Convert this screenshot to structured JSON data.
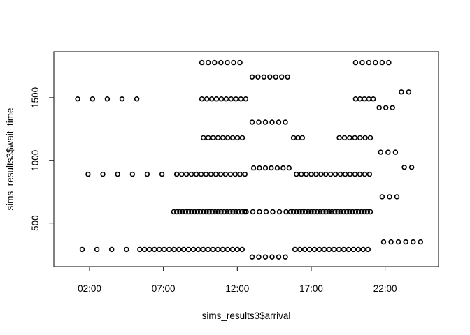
{
  "chart_data": {
    "type": "scatter",
    "title": "",
    "xlabel": "sims_results3$arrival",
    "ylabel": "sims_results3$wait_time",
    "xlim": [
      0.2,
      25.0
    ],
    "ylim": [
      220,
      1800
    ],
    "x_ticks": [
      2,
      7,
      12,
      17,
      22
    ],
    "x_tick_labels": [
      "02:00",
      "07:00",
      "12:00",
      "17:00",
      "22:00"
    ],
    "y_ticks": [
      500,
      1000,
      1500
    ],
    "y_tick_labels": [
      "500",
      "1000",
      "1500"
    ],
    "grid": false,
    "marker": "open-circle",
    "segments": [
      {
        "y": 1490,
        "x_start": 1.2,
        "x_end": 6.1,
        "step": 1.0
      },
      {
        "y": 1490,
        "x_start": 9.6,
        "x_end": 12.6,
        "step": 0.33
      },
      {
        "y": 1490,
        "x_start": 20.0,
        "x_end": 21.2,
        "step": 0.3
      },
      {
        "y": 890,
        "x_start": 1.9,
        "x_end": 7.9,
        "step": 1.0
      },
      {
        "y": 890,
        "x_start": 7.9,
        "x_end": 12.8,
        "step": 0.33
      },
      {
        "y": 890,
        "x_start": 16.0,
        "x_end": 21.1,
        "step": 0.33
      },
      {
        "y": 290,
        "x_start": 1.5,
        "x_end": 5.4,
        "step": 1.0
      },
      {
        "y": 290,
        "x_start": 5.4,
        "x_end": 12.4,
        "step": 0.33
      },
      {
        "y": 290,
        "x_start": 15.9,
        "x_end": 21.1,
        "step": 0.33
      },
      {
        "y": 1780,
        "x_start": 9.6,
        "x_end": 12.6,
        "step": 0.43
      },
      {
        "y": 1780,
        "x_start": 20.0,
        "x_end": 22.5,
        "step": 0.45
      },
      {
        "y": 1180,
        "x_start": 9.7,
        "x_end": 12.6,
        "step": 0.33
      },
      {
        "y": 1180,
        "x_start": 15.8,
        "x_end": 16.4,
        "step": 0.3
      },
      {
        "y": 1180,
        "x_start": 18.9,
        "x_end": 21.1,
        "step": 0.35
      },
      {
        "y": 590,
        "x_start": 7.7,
        "x_end": 12.6,
        "step": 0.2
      },
      {
        "y": 590,
        "x_start": 12.6,
        "x_end": 15.6,
        "step": 0.45
      },
      {
        "y": 590,
        "x_start": 15.6,
        "x_end": 21.1,
        "step": 0.2
      },
      {
        "y": 1665,
        "x_start": 13.0,
        "x_end": 15.5,
        "step": 0.4
      },
      {
        "y": 1305,
        "x_start": 13.0,
        "x_end": 15.5,
        "step": 0.45
      },
      {
        "y": 940,
        "x_start": 13.1,
        "x_end": 15.7,
        "step": 0.4
      },
      {
        "y": 230,
        "x_start": 13.0,
        "x_end": 15.4,
        "step": 0.45
      },
      {
        "y": 1420,
        "x_start": 21.6,
        "x_end": 22.6,
        "step": 0.45
      },
      {
        "y": 1065,
        "x_start": 21.7,
        "x_end": 22.8,
        "step": 0.5
      },
      {
        "y": 710,
        "x_start": 21.8,
        "x_end": 22.8,
        "step": 0.5
      },
      {
        "y": 350,
        "x_start": 21.9,
        "x_end": 24.5,
        "step": 0.5
      },
      {
        "y": 1545,
        "x_start": 23.1,
        "x_end": 23.6,
        "step": 0.5
      },
      {
        "y": 945,
        "x_start": 23.3,
        "x_end": 23.8,
        "step": 0.5
      }
    ]
  }
}
